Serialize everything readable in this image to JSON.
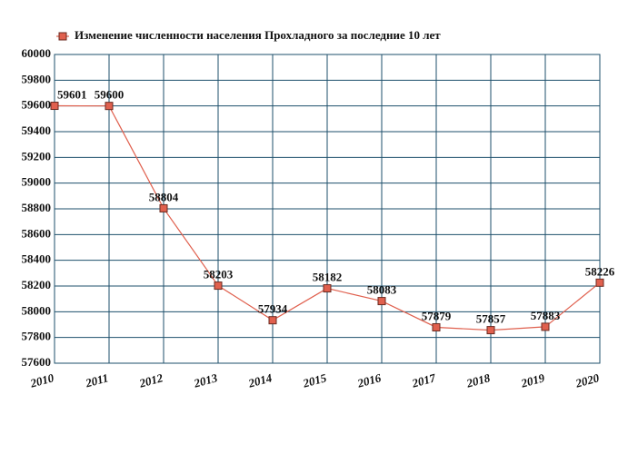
{
  "chart_data": {
    "type": "line",
    "x": [
      2010,
      2011,
      2012,
      2013,
      2014,
      2015,
      2016,
      2017,
      2018,
      2019,
      2020
    ],
    "series": [
      {
        "name": "Изменение численности населения Прохладного за последние 10 лет",
        "color": "#e0604e",
        "values": [
          59601,
          59600,
          58804,
          58203,
          57934,
          58182,
          58083,
          57879,
          57857,
          57883,
          58226
        ]
      }
    ],
    "xlim": [
      2010,
      2020
    ],
    "xticks": [
      2010,
      2011,
      2012,
      2013,
      2014,
      2015,
      2016,
      2017,
      2018,
      2019,
      2020
    ],
    "ylim": [
      57600,
      60000
    ],
    "yticks": [
      57600,
      57800,
      58000,
      58200,
      58400,
      58600,
      58800,
      59000,
      59200,
      59400,
      59600,
      59800,
      60000
    ],
    "grid": true,
    "legend": "top"
  }
}
